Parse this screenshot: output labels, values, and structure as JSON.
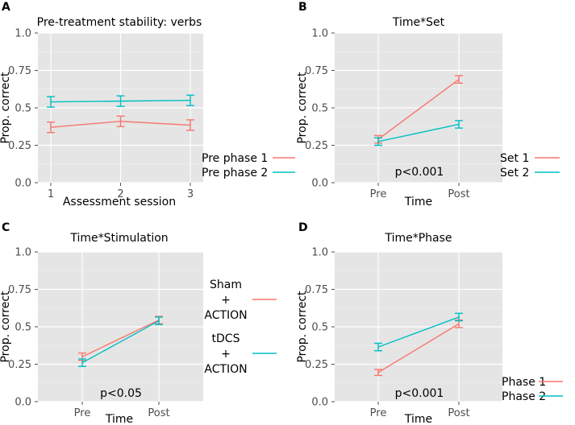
{
  "chart_data": [
    {
      "panel": "A",
      "type": "line",
      "title": "Pre-treatment stability: verbs",
      "xlabel": "Assessment session",
      "ylabel": "Prop. correct",
      "categories": [
        "1",
        "2",
        "3"
      ],
      "ylim": [
        0,
        1
      ],
      "yticks": [
        "0.0",
        "0.25",
        "0.5",
        "0.75",
        "1.0"
      ],
      "series": [
        {
          "name": "Pre phase 1",
          "color": "#f8766d",
          "values": [
            0.37,
            0.41,
            0.385
          ],
          "err": [
            0.035,
            0.035,
            0.035
          ]
        },
        {
          "name": "Pre phase 2",
          "color": "#00bfc4",
          "values": [
            0.54,
            0.545,
            0.55
          ],
          "err": [
            0.035,
            0.035,
            0.035
          ]
        }
      ],
      "annotation": ""
    },
    {
      "panel": "B",
      "type": "line",
      "title": "Time*Set",
      "xlabel": "Time",
      "ylabel": "Prop. correct",
      "categories": [
        "Pre",
        "Post"
      ],
      "ylim": [
        0,
        1
      ],
      "yticks": [
        "0.0",
        "0.25",
        "0.5",
        "0.75",
        "1.0"
      ],
      "series": [
        {
          "name": "Set 1",
          "color": "#f8766d",
          "values": [
            0.29,
            0.69
          ],
          "err": [
            0.025,
            0.025
          ]
        },
        {
          "name": "Set 2",
          "color": "#00bfc4",
          "values": [
            0.275,
            0.39
          ],
          "err": [
            0.025,
            0.025
          ]
        }
      ],
      "annotation": "p<0.001"
    },
    {
      "panel": "C",
      "type": "line",
      "title": "Time*Stimulation",
      "xlabel": "Time",
      "ylabel": "Prop. correct",
      "categories": [
        "Pre",
        "Post"
      ],
      "ylim": [
        0,
        1
      ],
      "yticks": [
        "0.0",
        "0.25",
        "0.5",
        "0.75",
        "1.0"
      ],
      "series": [
        {
          "name": "Sham\n+\nACTION",
          "color": "#f8766d",
          "values": [
            0.3,
            0.545
          ],
          "err": [
            0.025,
            0.025
          ]
        },
        {
          "name": "tDCS\n+\nACTION",
          "color": "#00bfc4",
          "values": [
            0.26,
            0.54
          ],
          "err": [
            0.025,
            0.025
          ]
        }
      ],
      "annotation": "p<0.05"
    },
    {
      "panel": "D",
      "type": "line",
      "title": "Time*Phase",
      "xlabel": "Time",
      "ylabel": "Prop. correct",
      "categories": [
        "Pre",
        "Post"
      ],
      "ylim": [
        0,
        1
      ],
      "yticks": [
        "0.0",
        "0.25",
        "0.5",
        "0.75",
        "1.0"
      ],
      "series": [
        {
          "name": "Phase 1",
          "color": "#f8766d",
          "values": [
            0.195,
            0.52
          ],
          "err": [
            0.02,
            0.025
          ]
        },
        {
          "name": "Phase 2",
          "color": "#00bfc4",
          "values": [
            0.365,
            0.565
          ],
          "err": [
            0.025,
            0.025
          ]
        }
      ],
      "annotation": "p<0.001"
    }
  ]
}
